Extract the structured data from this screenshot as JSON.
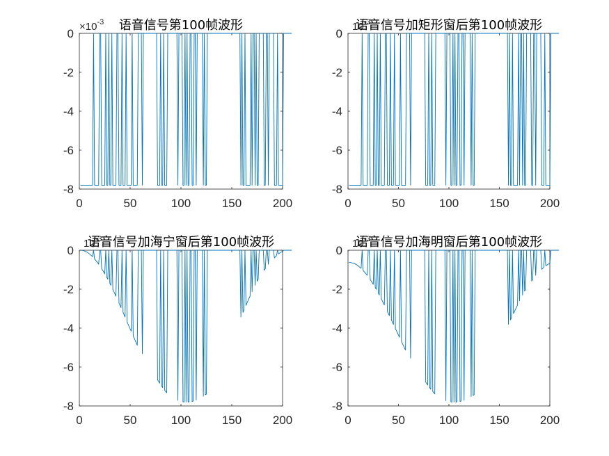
{
  "chart_data": [
    {
      "type": "line",
      "title": "语音信号第100帧波形",
      "exponent_label": "×10",
      "exponent_power": "-3",
      "xlim": [
        0,
        200
      ],
      "ylim": [
        -8,
        0
      ],
      "x_ticks": [
        "0",
        "50",
        "100",
        "150",
        "200"
      ],
      "y_ticks": [
        "0",
        "-2",
        "-4",
        "-6",
        "-8"
      ],
      "grid": false,
      "color": "#0072BD",
      "series": [
        {
          "values": [
            -7.8,
            -7.8,
            -7.8,
            -7.8,
            -7.8,
            -7.8,
            -7.8,
            -7.8,
            -7.8,
            -7.8,
            -7.8,
            -7.8,
            -7.8,
            0,
            -7.8,
            -7.8,
            -7.8,
            -7.8,
            -7.8,
            0,
            0,
            -7.8,
            -7.8,
            -7.8,
            -7.8,
            0,
            -7.8,
            -7.8,
            0,
            -7.8,
            -7.8,
            0,
            -7.8,
            -7.8,
            -7.8,
            -7.8,
            0,
            0,
            -7.8,
            -7.8,
            -7.8,
            0,
            -7.8,
            -7.8,
            -7.8,
            0,
            -7.8,
            -7.8,
            -7.8,
            -7.8,
            -7.8,
            0,
            -7.8,
            -7.8,
            -7.8,
            -7.8,
            -7.8,
            0,
            0,
            0,
            0,
            -7.8,
            0,
            0,
            0,
            0,
            0,
            0,
            0,
            0,
            0,
            0,
            0,
            0,
            0,
            0,
            -7.8,
            -7.8,
            -7.8,
            0,
            -7.8,
            -7.8,
            0,
            -7.8,
            -7.8,
            -7.8,
            0,
            0,
            0,
            0,
            0,
            0,
            0,
            0,
            0,
            0,
            -7.8,
            0,
            0,
            0,
            0,
            -7.8,
            -7.8,
            0,
            -7.8,
            0,
            -7.8,
            -7.8,
            0,
            0,
            -7.8,
            -7.8,
            0,
            0,
            -7.8,
            0,
            0,
            0,
            0,
            0,
            0,
            -7.8,
            0,
            -7.8,
            -7.8,
            0,
            0,
            0,
            0,
            0,
            0,
            0,
            0,
            0,
            0,
            0,
            0,
            0,
            0,
            0,
            0,
            0,
            0,
            0,
            0,
            0,
            0,
            0,
            0,
            0,
            0,
            0,
            0,
            0,
            0,
            0,
            0,
            0,
            -7.8,
            0,
            -7.8,
            -7.8,
            0,
            -7.8,
            -7.8,
            -7.8,
            -7.8,
            -7.8,
            0,
            -7.8,
            0,
            0,
            -7.8,
            0,
            -7.8,
            -7.8,
            0,
            0,
            0,
            0,
            0,
            -7.8,
            -7.8,
            0,
            0,
            -7.8,
            0,
            0,
            0,
            0,
            0,
            -7.8,
            -7.8,
            -7.8,
            0,
            -7.8,
            -7.8,
            -7.8,
            -7.8,
            -7.8,
            0,
            0,
            0,
            0,
            0,
            0,
            0,
            0,
            0
          ]
        }
      ]
    },
    {
      "type": "line",
      "title": "语音信号加矩形窗后第100帧波形",
      "exponent_label": "10",
      "exponent_power": "-3",
      "xlim": [
        0,
        200
      ],
      "ylim": [
        -8,
        0
      ],
      "x_ticks": [
        "0",
        "50",
        "100",
        "150",
        "200"
      ],
      "y_ticks": [
        "0",
        "-2",
        "-4",
        "-6",
        "-8"
      ],
      "grid": false,
      "color": "#0072BD",
      "series": [
        {
          "values": [
            -7.8,
            -7.8,
            -7.8,
            -7.8,
            -7.8,
            -7.8,
            -7.8,
            -7.8,
            -7.8,
            -7.8,
            -7.8,
            -7.8,
            -7.8,
            0,
            -7.8,
            -7.8,
            -7.8,
            -7.8,
            -7.8,
            0,
            0,
            -7.8,
            -7.8,
            -7.8,
            -7.8,
            0,
            -7.8,
            -7.8,
            0,
            -7.8,
            -7.8,
            0,
            -7.8,
            -7.8,
            -7.8,
            -7.8,
            0,
            0,
            -7.8,
            -7.8,
            -7.8,
            0,
            -7.8,
            -7.8,
            -7.8,
            0,
            -7.8,
            -7.8,
            -7.8,
            -7.8,
            -7.8,
            0,
            -7.8,
            -7.8,
            -7.8,
            -7.8,
            -7.8,
            0,
            0,
            0,
            0,
            -7.8,
            0,
            0,
            0,
            0,
            0,
            0,
            0,
            0,
            0,
            0,
            0,
            0,
            0,
            0,
            -7.8,
            -7.8,
            -7.8,
            0,
            -7.8,
            -7.8,
            0,
            -7.8,
            -7.8,
            -7.8,
            0,
            0,
            0,
            0,
            0,
            0,
            0,
            0,
            0,
            0,
            -7.8,
            0,
            0,
            0,
            0,
            -7.8,
            -7.8,
            0,
            -7.8,
            0,
            -7.8,
            -7.8,
            0,
            0,
            -7.8,
            -7.8,
            0,
            0,
            -7.8,
            0,
            0,
            0,
            0,
            0,
            0,
            -7.8,
            0,
            -7.8,
            -7.8,
            0,
            0,
            0,
            0,
            0,
            0,
            0,
            0,
            0,
            0,
            0,
            0,
            0,
            0,
            0,
            0,
            0,
            0,
            0,
            0,
            0,
            0,
            0,
            0,
            0,
            0,
            0,
            0,
            0,
            0,
            0,
            0,
            0,
            -7.8,
            0,
            -7.8,
            -7.8,
            0,
            -7.8,
            -7.8,
            -7.8,
            -7.8,
            -7.8,
            0,
            -7.8,
            0,
            0,
            -7.8,
            0,
            -7.8,
            -7.8,
            0,
            0,
            0,
            0,
            0,
            -7.8,
            -7.8,
            0,
            0,
            -7.8,
            0,
            0,
            0,
            0,
            0,
            -7.8,
            -7.8,
            -7.8,
            0,
            -7.8,
            -7.8,
            -7.8,
            -7.8,
            -7.8,
            0,
            0,
            0,
            0,
            0,
            0,
            0,
            0,
            0
          ]
        }
      ]
    },
    {
      "type": "line",
      "title": "语音信号加海宁窗后第100帧波形",
      "exponent_label": "10",
      "exponent_power": "-3",
      "xlim": [
        0,
        200
      ],
      "ylim": [
        -8,
        0
      ],
      "x_ticks": [
        "0",
        "50",
        "100",
        "150",
        "200"
      ],
      "y_ticks": [
        "0",
        "-2",
        "-4",
        "-6",
        "-8"
      ],
      "grid": false,
      "color": "#0072BD",
      "series": [
        {
          "values": [
            -0.0,
            -0.0,
            -0.01,
            -0.02,
            -0.04,
            -0.06,
            -0.08,
            -0.11,
            -0.15,
            -0.19,
            -0.23,
            -0.28,
            -0.33,
            0,
            -0.45,
            -0.51,
            -0.57,
            -0.64,
            -0.72,
            0,
            0,
            -0.95,
            -1.03,
            -1.12,
            -1.21,
            0,
            -1.39,
            -1.49,
            0,
            -1.7,
            -1.8,
            0,
            -2.02,
            -2.13,
            -2.24,
            -2.36,
            0,
            0,
            -2.71,
            -2.83,
            -2.95,
            0,
            -3.19,
            -3.31,
            -3.43,
            0,
            -3.68,
            -3.8,
            -3.92,
            -4.04,
            -4.16,
            0,
            -4.4,
            -4.52,
            -4.64,
            -4.76,
            -4.88,
            0,
            0,
            0,
            0,
            -5.32,
            0,
            0,
            0,
            0,
            0,
            0,
            0,
            0,
            0,
            0,
            0,
            0,
            0,
            0,
            -6.66,
            -6.74,
            -6.83,
            0,
            -6.98,
            -7.06,
            0,
            -7.19,
            -7.26,
            -7.32,
            0,
            0,
            0,
            0,
            0,
            0,
            0,
            0,
            0,
            0,
            -7.71,
            0,
            0,
            0,
            0,
            -7.79,
            -7.8,
            0,
            -7.8,
            0,
            -7.8,
            -7.79,
            0,
            0,
            -7.77,
            -7.75,
            0,
            0,
            -7.7,
            0,
            0,
            0,
            0,
            0,
            0,
            -7.5,
            0,
            -7.43,
            -7.39,
            0,
            0,
            0,
            0,
            0,
            0,
            0,
            0,
            0,
            0,
            0,
            0,
            0,
            0,
            0,
            0,
            0,
            0,
            0,
            0,
            0,
            0,
            0,
            0,
            0,
            0,
            0,
            0,
            0,
            0,
            0,
            0,
            0,
            -3.43,
            0,
            -3.19,
            -3.07,
            0,
            -2.83,
            -2.71,
            -2.59,
            -2.47,
            -2.36,
            0,
            -2.13,
            0,
            0,
            -1.8,
            0,
            -1.59,
            -1.49,
            0,
            0,
            0,
            0,
            0,
            -1.03,
            -0.95,
            0,
            0,
            -0.72,
            0,
            0,
            0,
            0,
            0,
            -0.39,
            -0.33,
            -0.28,
            0,
            -0.19,
            -0.15,
            -0.11,
            -0.08,
            -0.06,
            0,
            0,
            0,
            0,
            0,
            0,
            0,
            0,
            0
          ]
        }
      ]
    },
    {
      "type": "line",
      "title": "语音信号加海明窗后第100帧波形",
      "exponent_label": "10",
      "exponent_power": "-3",
      "xlim": [
        0,
        200
      ],
      "ylim": [
        -8,
        0
      ],
      "x_ticks": [
        "0",
        "50",
        "100",
        "150",
        "200"
      ],
      "y_ticks": [
        "0",
        "-2",
        "-4",
        "-6",
        "-8"
      ],
      "grid": false,
      "color": "#0072BD",
      "series": [
        {
          "values": [
            -0.62,
            -0.63,
            -0.63,
            -0.65,
            -0.66,
            -0.68,
            -0.7,
            -0.73,
            -0.76,
            -0.8,
            -0.84,
            -0.89,
            -0.93,
            0,
            -1.04,
            -1.1,
            -1.16,
            -1.22,
            -1.29,
            0,
            0,
            -1.51,
            -1.58,
            -1.67,
            -1.75,
            0,
            -1.92,
            -2.01,
            0,
            -2.2,
            -2.3,
            0,
            -2.5,
            -2.6,
            -2.71,
            -2.81,
            0,
            0,
            -3.14,
            -3.25,
            -3.36,
            0,
            -3.58,
            -3.69,
            -3.81,
            0,
            -4.03,
            -4.14,
            -4.25,
            -4.36,
            -4.47,
            0,
            -4.69,
            -4.8,
            -4.91,
            -5.02,
            -5.13,
            0,
            0,
            0,
            0,
            -5.54,
            0,
            0,
            0,
            0,
            0,
            0,
            0,
            0,
            0,
            0,
            0,
            0,
            0,
            0,
            -6.77,
            -6.85,
            -6.92,
            0,
            -7.07,
            -7.14,
            0,
            -7.26,
            -7.32,
            -7.38,
            0,
            0,
            0,
            0,
            0,
            0,
            0,
            0,
            0,
            0,
            -7.73,
            0,
            0,
            0,
            0,
            -7.79,
            -7.8,
            0,
            -7.8,
            0,
            -7.8,
            -7.79,
            0,
            0,
            -7.77,
            -7.75,
            0,
            0,
            -7.71,
            0,
            0,
            0,
            0,
            0,
            0,
            -7.52,
            0,
            -7.46,
            -7.42,
            0,
            0,
            0,
            0,
            0,
            0,
            0,
            0,
            0,
            0,
            0,
            0,
            0,
            0,
            0,
            0,
            0,
            0,
            0,
            0,
            0,
            0,
            0,
            0,
            0,
            0,
            0,
            0,
            0,
            0,
            0,
            0,
            0,
            -3.81,
            0,
            -3.58,
            -3.47,
            0,
            -3.25,
            -3.14,
            -3.03,
            -2.92,
            -2.81,
            0,
            -2.6,
            0,
            0,
            -2.3,
            0,
            -2.1,
            -2.01,
            0,
            0,
            0,
            0,
            0,
            -1.58,
            -1.51,
            0,
            0,
            -1.29,
            0,
            0,
            0,
            0,
            0,
            -0.98,
            -0.93,
            -0.89,
            0,
            -0.8,
            -0.76,
            -0.73,
            -0.7,
            -0.68,
            0,
            0,
            0,
            0,
            0,
            0,
            0,
            0,
            0
          ]
        }
      ]
    }
  ]
}
